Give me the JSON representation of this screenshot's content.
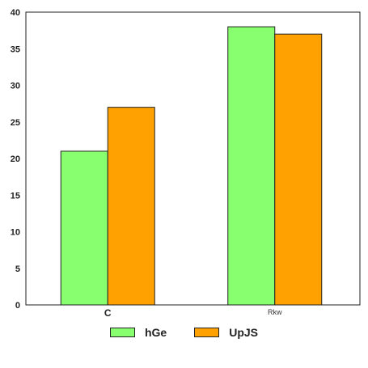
{
  "chart_data": {
    "type": "bar",
    "categories": [
      "C",
      "Rkw"
    ],
    "series": [
      {
        "name": "hGe",
        "values": [
          21,
          38
        ],
        "color": "#88ff6e"
      },
      {
        "name": "UpJS",
        "values": [
          27,
          37
        ],
        "color": "#ffa100"
      }
    ],
    "ylim": [
      0,
      40
    ],
    "yticks": [
      0,
      5,
      10,
      15,
      20,
      25,
      30,
      35,
      40
    ],
    "title": "",
    "xlabel": "",
    "ylabel": "",
    "grid": false,
    "legend_position": "bottom-center"
  }
}
